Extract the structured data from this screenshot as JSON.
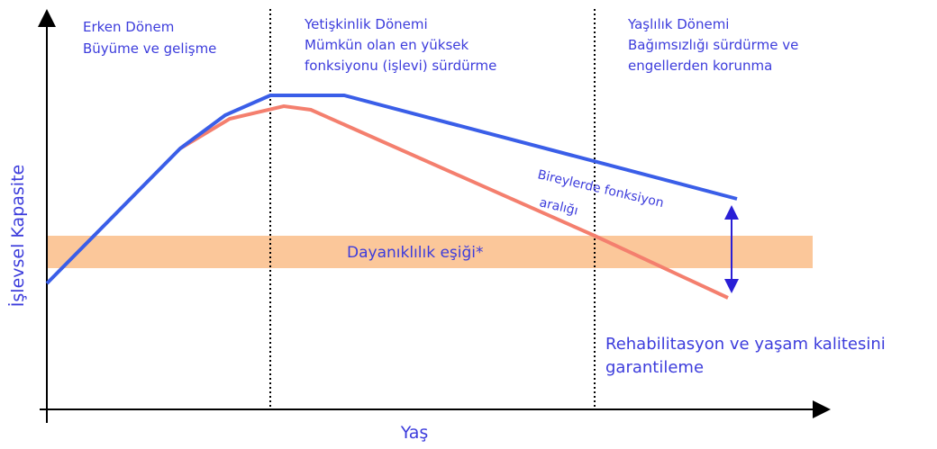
{
  "axes": {
    "y_label": "İşlevsel Kapasite",
    "x_label": "Yaş"
  },
  "phases": [
    {
      "title": "Erken Dönem",
      "lines": [
        "Büyüme ve gelişme"
      ]
    },
    {
      "title": "Yetişkinlik Dönemi",
      "lines": [
        "Mümkün olan en yüksek",
        "fonksiyonu (işlevi) sürdürme"
      ]
    },
    {
      "title": "Yaşlılık Dönemi",
      "lines": [
        "Bağımsızlığı sürdürme ve",
        "engellerden korunma"
      ]
    }
  ],
  "threshold": "Dayanıklılık eşiği*",
  "range_label": [
    "Bireylerde fonksiyon",
    "aralığı"
  ],
  "note": [
    "Rehabilitasyon ve yaşam kalitesini",
    "garantileme"
  ]
}
